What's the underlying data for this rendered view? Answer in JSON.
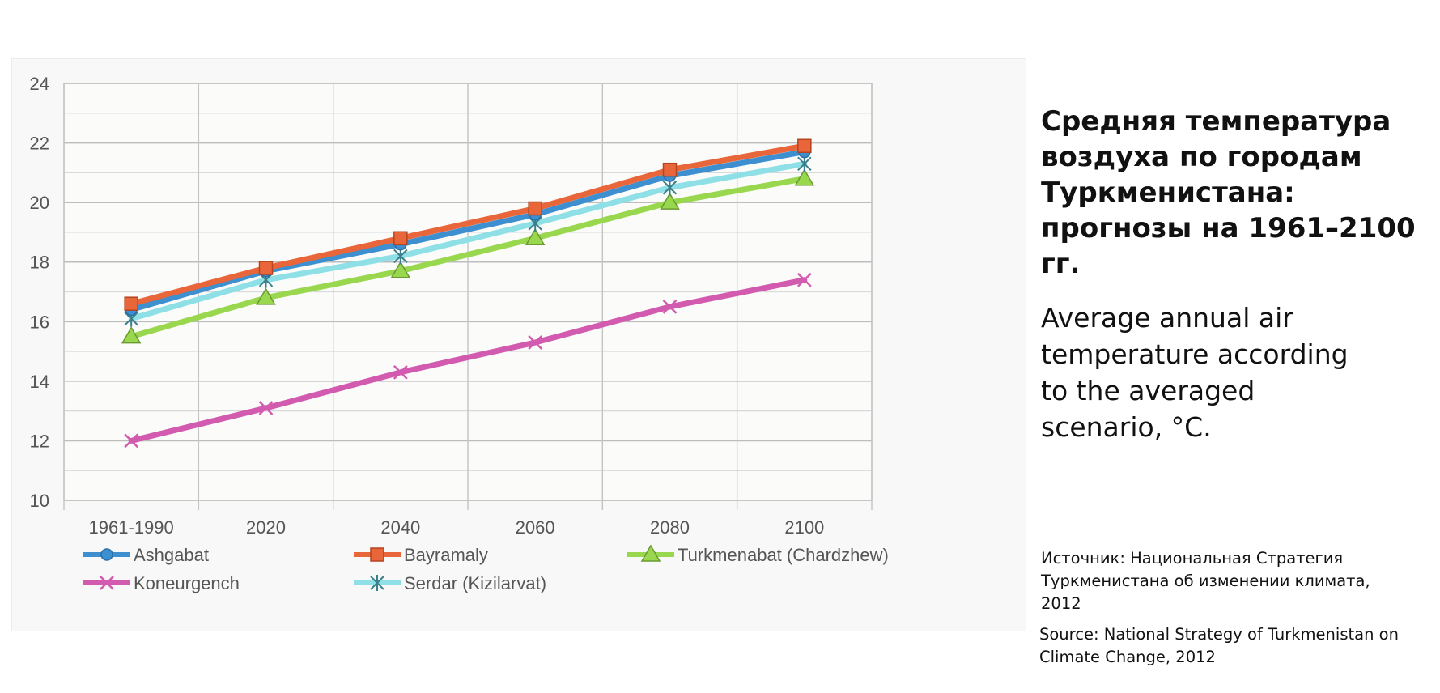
{
  "side_panel": {
    "title_ru": "Средняя температура воздуха по городам Туркменистана: прогнозы на 1961–2100 гг.",
    "subtitle_en": "Average annual air temperature according to the averaged scenario, °C.",
    "source_ru": "Источник: Национальная Стратегия Туркменистана об изменении климата, 2012",
    "source_en": "Source: National Strategy of Turkmenistan on Climate Change, 2012"
  },
  "chart_data": {
    "type": "line",
    "categories": [
      "1961-1990",
      "2020",
      "2040",
      "2060",
      "2080",
      "2100"
    ],
    "ylim": [
      10,
      24
    ],
    "yticks": [
      10,
      12,
      14,
      16,
      18,
      20,
      22,
      24
    ],
    "grid": true,
    "legend_position": "bottom",
    "series": [
      {
        "name": "Ashgabat",
        "color": "#3d8fd0",
        "marker": "circle",
        "values": [
          16.4,
          17.7,
          18.6,
          19.6,
          20.9,
          21.7
        ]
      },
      {
        "name": "Bayramaly",
        "color": "#e8663a",
        "marker": "square",
        "values": [
          16.6,
          17.8,
          18.8,
          19.8,
          21.1,
          21.9
        ]
      },
      {
        "name": "Turkmenabat (Chardzhew)",
        "color": "#99d84e",
        "marker": "triangle",
        "values": [
          15.5,
          16.8,
          17.7,
          18.8,
          20.0,
          20.8
        ]
      },
      {
        "name": "Koneurgench",
        "color": "#d25bb0",
        "marker": "x",
        "values": [
          12.0,
          13.1,
          14.3,
          15.3,
          16.5,
          17.4
        ]
      },
      {
        "name": "Serdar (Kizilarvat)",
        "color": "#8fe0e6",
        "marker": "star",
        "values": [
          16.1,
          17.4,
          18.2,
          19.3,
          20.5,
          21.3
        ]
      }
    ]
  }
}
